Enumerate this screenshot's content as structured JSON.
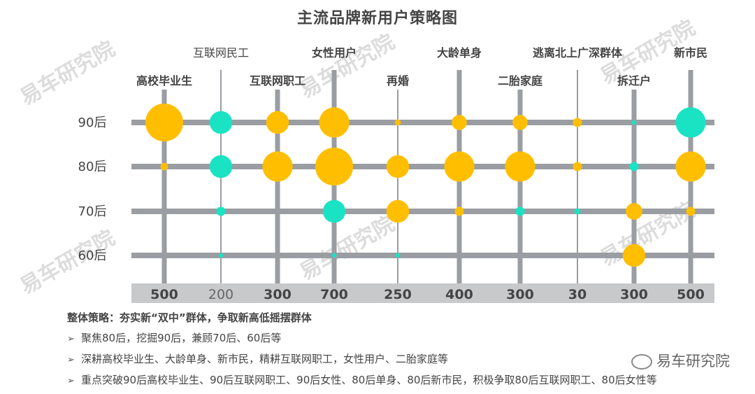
{
  "title": "主流品牌新用户策略图",
  "watermark_text": "易车研究院",
  "brand": "易车研究院",
  "chart_data": {
    "type": "bubble",
    "columns": [
      {
        "label": "高校毕业生",
        "label_row": 2,
        "label_bold": true,
        "count": "500",
        "count_bold": true,
        "line": "thick"
      },
      {
        "label": "互联网民工",
        "label_row": 1,
        "label_bold": false,
        "count": "200",
        "count_bold": false,
        "line": "thin"
      },
      {
        "label": "互联网职工",
        "label_row": 2,
        "label_bold": true,
        "count": "300",
        "count_bold": true,
        "line": "thick"
      },
      {
        "label": "女性用户",
        "label_row": 1,
        "label_bold": true,
        "count": "700",
        "count_bold": true,
        "line": "thick"
      },
      {
        "label": "再婚",
        "label_row": 2,
        "label_bold": true,
        "count": "250",
        "count_bold": true,
        "line": "thin"
      },
      {
        "label": "大龄单身",
        "label_row": 1,
        "label_bold": true,
        "count": "400",
        "count_bold": true,
        "line": "thick"
      },
      {
        "label": "二胎家庭",
        "label_row": 2,
        "label_bold": true,
        "count": "300",
        "count_bold": true,
        "line": "thick"
      },
      {
        "label": "逃离北上广深群体",
        "label_row": 1,
        "label_bold": true,
        "count": "30",
        "count_bold": true,
        "line": "thin"
      },
      {
        "label": "拆迁户",
        "label_row": 2,
        "label_bold": true,
        "count": "300",
        "count_bold": true,
        "line": "thick"
      },
      {
        "label": "新市民",
        "label_row": 1,
        "label_bold": true,
        "count": "500",
        "count_bold": true,
        "line": "thick"
      }
    ],
    "rows": [
      "90后",
      "80后",
      "70后",
      "60后"
    ],
    "colors": {
      "primary": "#FFBF00",
      "secondary": "#19E3C3",
      "grid": "#9A9DA2",
      "count_band": "#C8C9CB"
    },
    "bubbles": [
      {
        "col": 0,
        "row": "90后",
        "size": 5,
        "color": "primary"
      },
      {
        "col": 0,
        "row": "80后",
        "size": 1,
        "color": "primary"
      },
      {
        "col": 1,
        "row": "90后",
        "size": 3,
        "color": "secondary"
      },
      {
        "col": 1,
        "row": "80后",
        "size": 3,
        "color": "secondary"
      },
      {
        "col": 1,
        "row": "70后",
        "size": 1.2,
        "color": "secondary"
      },
      {
        "col": 1,
        "row": "60后",
        "size": 0.6,
        "color": "secondary"
      },
      {
        "col": 2,
        "row": "90后",
        "size": 3,
        "color": "primary"
      },
      {
        "col": 2,
        "row": "80后",
        "size": 4,
        "color": "primary"
      },
      {
        "col": 3,
        "row": "90后",
        "size": 4,
        "color": "primary"
      },
      {
        "col": 3,
        "row": "80后",
        "size": 5,
        "color": "primary"
      },
      {
        "col": 3,
        "row": "70后",
        "size": 3,
        "color": "secondary"
      },
      {
        "col": 3,
        "row": "60后",
        "size": 0.6,
        "color": "secondary"
      },
      {
        "col": 4,
        "row": "90后",
        "size": 0.8,
        "color": "primary"
      },
      {
        "col": 4,
        "row": "80后",
        "size": 3,
        "color": "primary"
      },
      {
        "col": 4,
        "row": "70后",
        "size": 3,
        "color": "primary"
      },
      {
        "col": 4,
        "row": "60后",
        "size": 0.6,
        "color": "secondary"
      },
      {
        "col": 5,
        "row": "90后",
        "size": 2,
        "color": "primary"
      },
      {
        "col": 5,
        "row": "80后",
        "size": 4,
        "color": "primary"
      },
      {
        "col": 5,
        "row": "70后",
        "size": 1.2,
        "color": "primary"
      },
      {
        "col": 6,
        "row": "90后",
        "size": 2,
        "color": "primary"
      },
      {
        "col": 6,
        "row": "80后",
        "size": 4,
        "color": "primary"
      },
      {
        "col": 6,
        "row": "70后",
        "size": 1.2,
        "color": "secondary"
      },
      {
        "col": 7,
        "row": "90后",
        "size": 1.2,
        "color": "primary"
      },
      {
        "col": 7,
        "row": "80后",
        "size": 1.2,
        "color": "primary"
      },
      {
        "col": 7,
        "row": "70后",
        "size": 0.8,
        "color": "secondary"
      },
      {
        "col": 8,
        "row": "90后",
        "size": 0.6,
        "color": "secondary"
      },
      {
        "col": 8,
        "row": "80后",
        "size": 1.2,
        "color": "secondary"
      },
      {
        "col": 8,
        "row": "70后",
        "size": 2.2,
        "color": "primary"
      },
      {
        "col": 8,
        "row": "60后",
        "size": 3,
        "color": "primary"
      },
      {
        "col": 9,
        "row": "90后",
        "size": 4,
        "color": "secondary"
      },
      {
        "col": 9,
        "row": "80后",
        "size": 4,
        "color": "primary"
      },
      {
        "col": 9,
        "row": "70后",
        "size": 1.2,
        "color": "primary"
      }
    ]
  },
  "strategy": {
    "heading": "整体策略：夯实新“双中”群体，争取新高低摇摆群体",
    "items": [
      "聚焦80后，挖掘90后，兼顾70后、60后等",
      "深耕高校毕业生、大龄单身、新市民，精耕互联网职工，女性用户、二胎家庭等",
      "重点突破90后高校毕业生、90后互联网职工、90后女性、80后单身、80后新市民，积极争取80后互联网职工、80后女性等"
    ]
  }
}
